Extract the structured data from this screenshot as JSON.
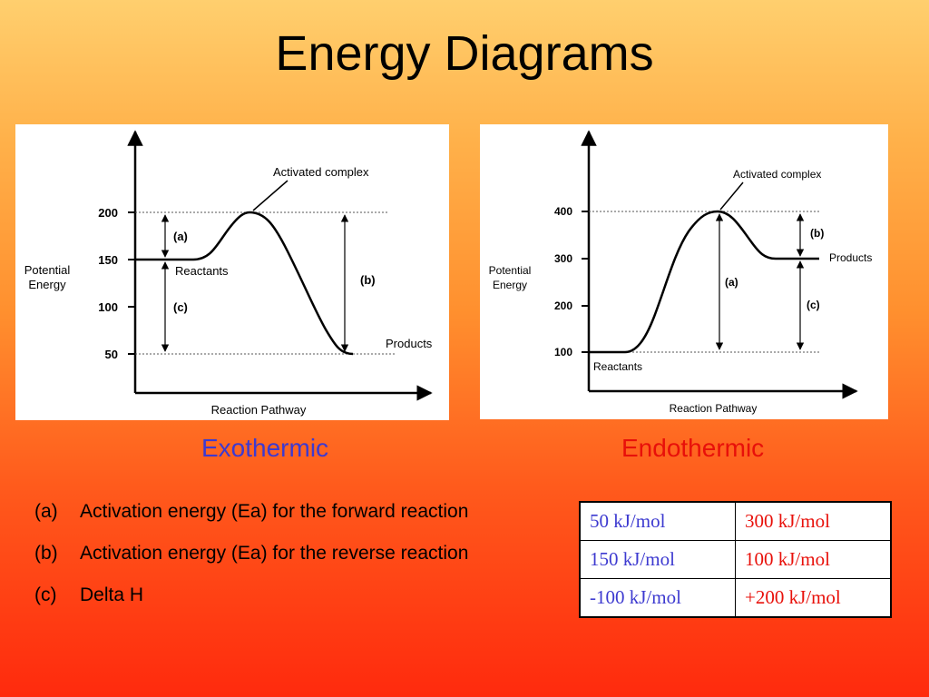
{
  "title": "Energy Diagrams",
  "exothermic": {
    "caption": "Exothermic",
    "y_axis_label_line1": "Potential",
    "y_axis_label_line2": "Energy",
    "x_axis_label": "Reaction Pathway",
    "ticks": [
      "200",
      "150",
      "100",
      "50"
    ],
    "peak_label": "Activated complex",
    "reactants_label": "Reactants",
    "products_label": "Products",
    "marker_a": "(a)",
    "marker_b": "(b)",
    "marker_c": "(c)",
    "reactant_energy": 150,
    "peak_energy": 200,
    "product_energy": 50
  },
  "endothermic": {
    "caption": "Endothermic",
    "y_axis_label_line1": "Potential",
    "y_axis_label_line2": "Energy",
    "x_axis_label": "Reaction Pathway",
    "ticks": [
      "400",
      "300",
      "200",
      "100"
    ],
    "peak_label": "Activated complex",
    "reactants_label": "Reactants",
    "products_label": "Products",
    "marker_a": "(a)",
    "marker_b": "(b)",
    "marker_c": "(c)",
    "reactant_energy": 100,
    "peak_energy": 400,
    "product_energy": 300
  },
  "legend": [
    {
      "key": "(a)",
      "text": "Activation energy (Ea) for the forward reaction"
    },
    {
      "key": "(b)",
      "text": "Activation energy (Ea) for the reverse reaction"
    },
    {
      "key": "(c)",
      "text": "Delta H"
    }
  ],
  "answers": [
    {
      "exo": "50 kJ/mol",
      "endo": "300 kJ/mol"
    },
    {
      "exo": "150 kJ/mol",
      "endo": "100 kJ/mol"
    },
    {
      "exo": "-100 kJ/mol",
      "endo": "+200 kJ/mol"
    }
  ],
  "colors": {
    "exothermic": "#3d3ad0",
    "endothermic": "#e8100a"
  }
}
